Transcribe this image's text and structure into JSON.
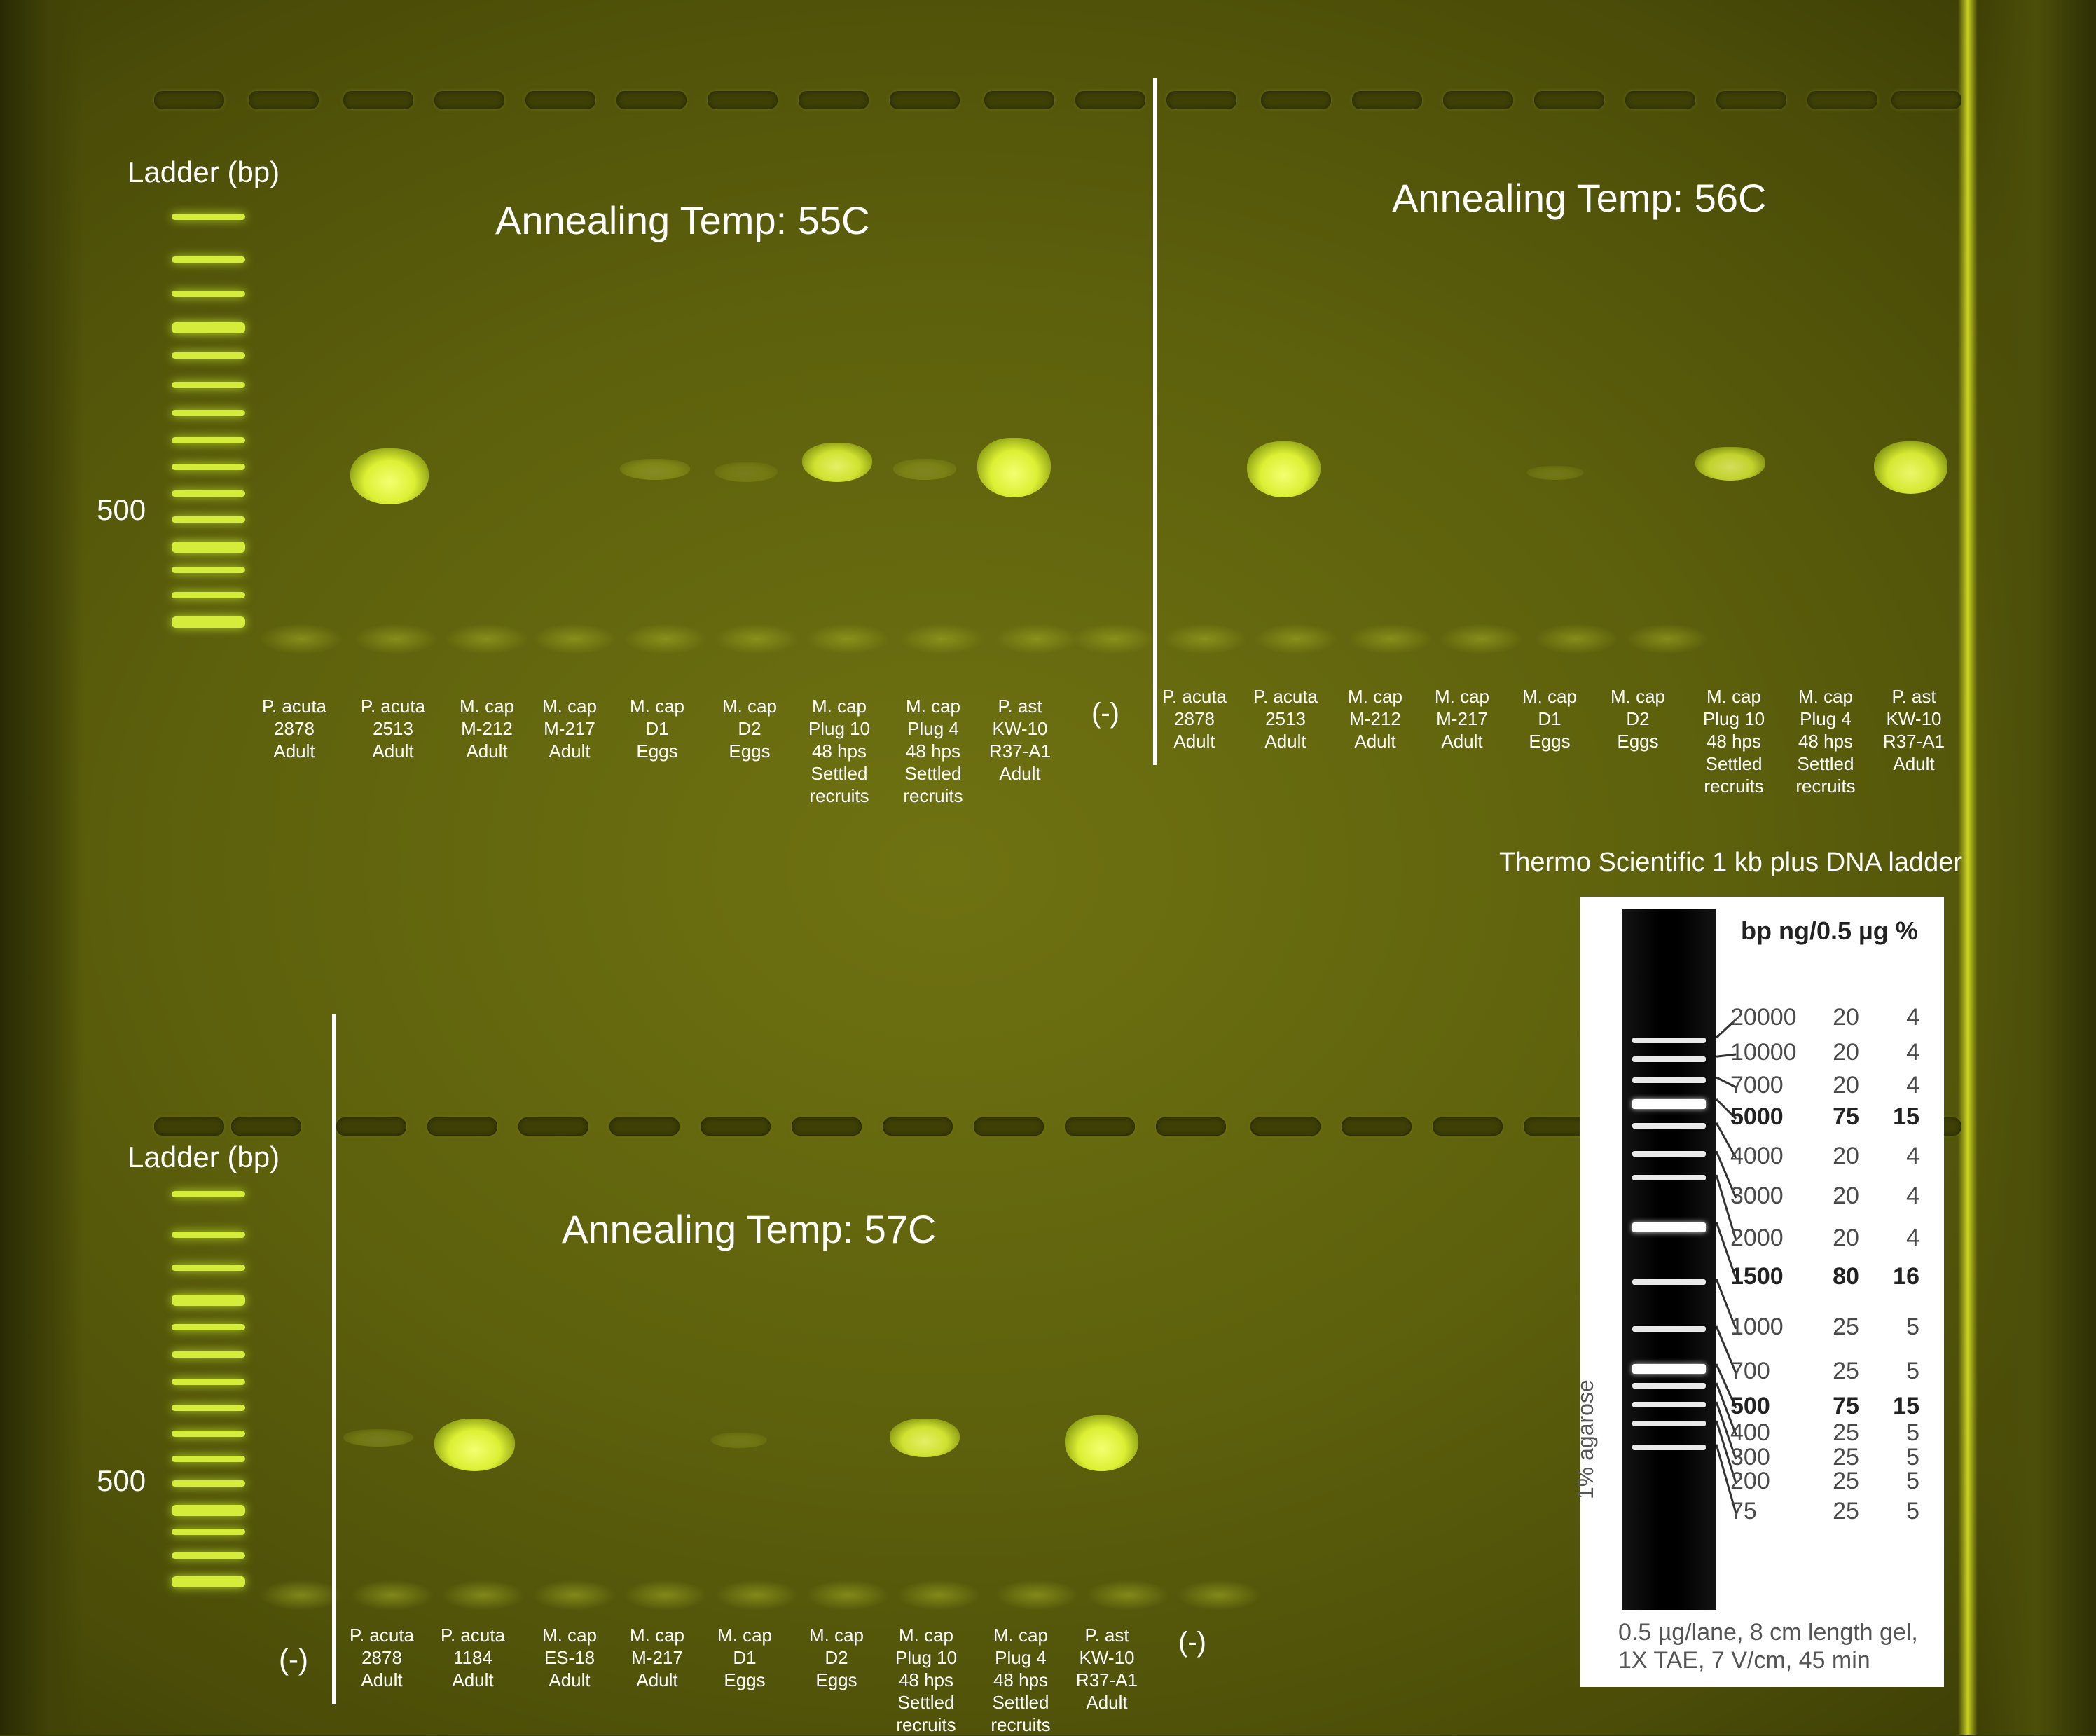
{
  "upper_left": {
    "ladder_label": "Ladder (bp)",
    "marker_500": "500",
    "title": "Annealing Temp: 55C",
    "lanes": [
      [
        "P. acuta",
        "2878",
        "Adult"
      ],
      [
        "P. acuta",
        "2513",
        "Adult"
      ],
      [
        "M. cap",
        "M-212",
        "Adult"
      ],
      [
        "M. cap",
        "M-217",
        "Adult"
      ],
      [
        "M. cap",
        "D1",
        "Eggs"
      ],
      [
        "M. cap",
        "D2",
        "Eggs"
      ],
      [
        "M. cap",
        "Plug 10",
        "48 hps",
        "Settled",
        "recruits"
      ],
      [
        "M. cap",
        "Plug 4",
        "48 hps",
        "Settled",
        "recruits"
      ],
      [
        "P. ast",
        "KW-10",
        "R37-A1",
        "Adult"
      ],
      [
        "(-)"
      ]
    ]
  },
  "upper_right": {
    "title": "Annealing Temp: 56C",
    "lanes": [
      [
        "P. acuta",
        "2878",
        "Adult"
      ],
      [
        "P. acuta",
        "2513",
        "Adult"
      ],
      [
        "M. cap",
        "M-212",
        "Adult"
      ],
      [
        "M. cap",
        "M-217",
        "Adult"
      ],
      [
        "M. cap",
        "D1",
        "Eggs"
      ],
      [
        "M. cap",
        "D2",
        "Eggs"
      ],
      [
        "M. cap",
        "Plug 10",
        "48 hps",
        "Settled",
        "recruits"
      ],
      [
        "M. cap",
        "Plug 4",
        "48 hps",
        "Settled",
        "recruits"
      ],
      [
        "P. ast",
        "KW-10",
        "R37-A1",
        "Adult"
      ]
    ]
  },
  "lower": {
    "ladder_label": "Ladder (bp)",
    "marker_500": "500",
    "title": "Annealing Temp: 57C",
    "neg_left": "(-)",
    "lanes": [
      [
        "P. acuta",
        "2878",
        "Adult"
      ],
      [
        "P. acuta",
        "1184",
        "Adult"
      ],
      [
        "M. cap",
        "ES-18",
        "Adult"
      ],
      [
        "M. cap",
        "M-217",
        "Adult"
      ],
      [
        "M. cap",
        "D1",
        "Eggs"
      ],
      [
        "M. cap",
        "D2",
        "Eggs"
      ],
      [
        "M. cap",
        "Plug 10",
        "48 hps",
        "Settled",
        "recruits"
      ],
      [
        "M. cap",
        "Plug 4",
        "48 hps",
        "Settled",
        "recruits"
      ],
      [
        "P. ast",
        "KW-10",
        "R37-A1",
        "Adult"
      ],
      [
        "(-)"
      ]
    ]
  },
  "reference": {
    "title": "Thermo Scientific 1 kb plus DNA ladder",
    "header": "bp  ng/0.5 µg  %",
    "rows": [
      {
        "bp": "20000",
        "ng": "20",
        "pct": "4",
        "bold": false
      },
      {
        "bp": "10000",
        "ng": "20",
        "pct": "4",
        "bold": false
      },
      {
        "bp": "7000",
        "ng": "20",
        "pct": "4",
        "bold": false
      },
      {
        "bp": "5000",
        "ng": "75",
        "pct": "15",
        "bold": true
      },
      {
        "bp": "4000",
        "ng": "20",
        "pct": "4",
        "bold": false
      },
      {
        "bp": "3000",
        "ng": "20",
        "pct": "4",
        "bold": false
      },
      {
        "bp": "2000",
        "ng": "20",
        "pct": "4",
        "bold": false
      },
      {
        "bp": "1500",
        "ng": "80",
        "pct": "16",
        "bold": true
      },
      {
        "bp": "1000",
        "ng": "25",
        "pct": "5",
        "bold": false
      },
      {
        "bp": "700",
        "ng": "25",
        "pct": "5",
        "bold": false
      },
      {
        "bp": "500",
        "ng": "75",
        "pct": "15",
        "bold": true
      },
      {
        "bp": "400",
        "ng": "25",
        "pct": "5",
        "bold": false
      },
      {
        "bp": "300",
        "ng": "25",
        "pct": "5",
        "bold": false
      },
      {
        "bp": "200",
        "ng": "25",
        "pct": "5",
        "bold": false
      },
      {
        "bp": "75",
        "ng": "25",
        "pct": "5",
        "bold": false
      }
    ],
    "agarose": "1% agarose",
    "caption_line1": "0.5 µg/lane, 8 cm length gel,",
    "caption_line2": "1X TAE, 7 V/cm, 45 min"
  },
  "colors": {
    "gel": "#5e610c",
    "band": "#dcf034",
    "label": "#ffffff"
  }
}
